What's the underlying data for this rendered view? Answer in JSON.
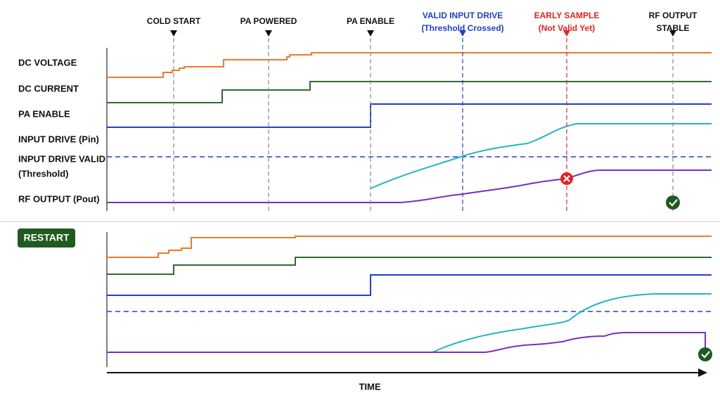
{
  "markers": [
    {
      "lines": [
        "COLD START"
      ]
    },
    {
      "lines": [
        "PA POWERED"
      ]
    },
    {
      "lines": [
        "PA ENABLE"
      ]
    },
    {
      "lines": [
        "VALID INPUT DRIVE",
        "(Threshold Crossed)"
      ]
    },
    {
      "lines": [
        "EARLY SAMPLE",
        "(Not Valid Yet)"
      ]
    },
    {
      "lines": [
        "RF OUTPUT",
        "STABLE"
      ]
    }
  ],
  "signals": [
    {
      "lines": [
        "DC VOLTAGE"
      ]
    },
    {
      "lines": [
        "DC CURRENT"
      ]
    },
    {
      "lines": [
        "PA ENABLE"
      ]
    },
    {
      "lines": [
        "INPUT DRIVE (Pin)"
      ]
    },
    {
      "lines": [
        "INPUT DRIVE VALID",
        "(Threshold)"
      ]
    },
    {
      "lines": [
        "RF OUTPUT (Pout)"
      ]
    }
  ],
  "restart_label": "RESTART",
  "axis_label": "TIME"
}
